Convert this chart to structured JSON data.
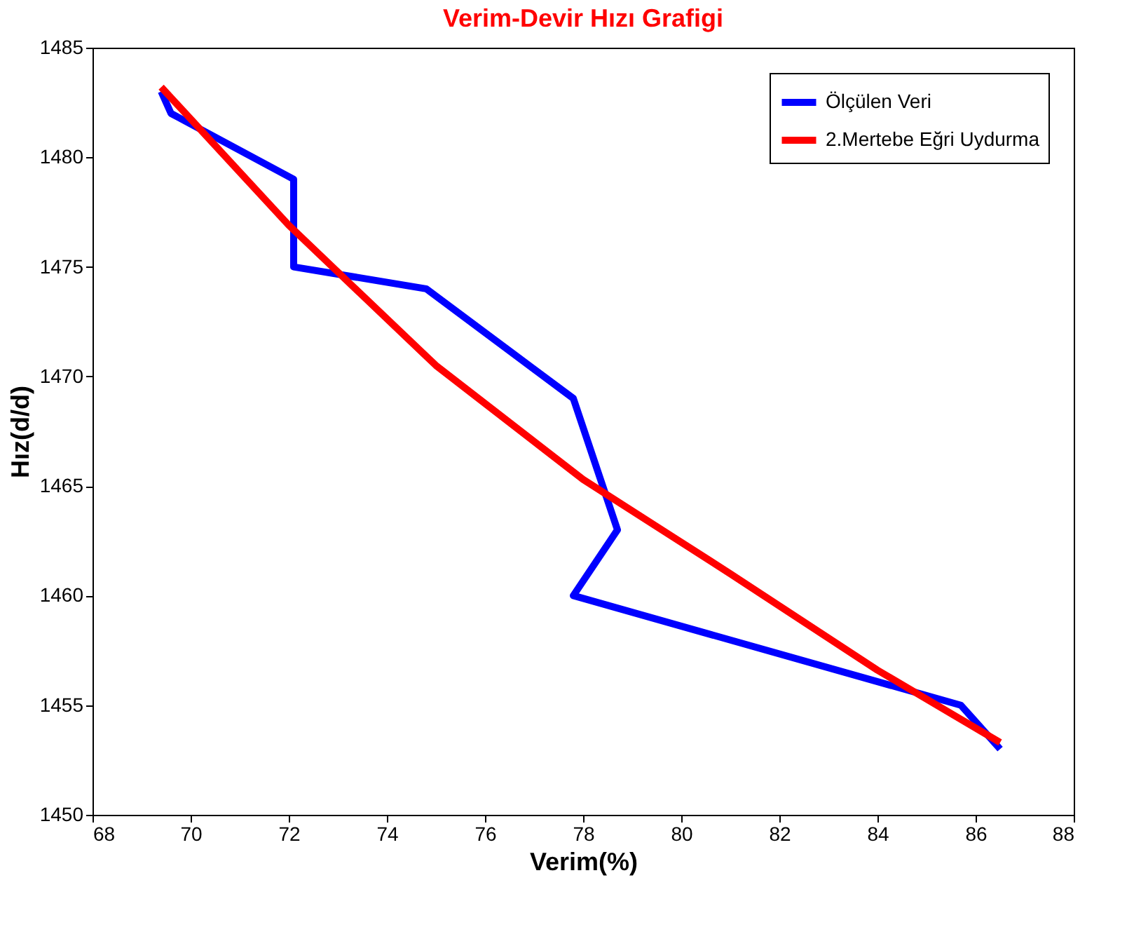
{
  "chart_data": {
    "type": "line",
    "title": "Verim-Devir Hızı Grafigi",
    "xlabel": "Verim(%)",
    "ylabel": "Hız(d/d)",
    "xlim": [
      68,
      88
    ],
    "xticks": [
      68,
      70,
      72,
      74,
      76,
      78,
      80,
      82,
      84,
      86,
      88
    ],
    "ylim": [
      1450,
      1485
    ],
    "yticks": [
      1450,
      1455,
      1460,
      1465,
      1470,
      1475,
      1480,
      1485
    ],
    "grid": false,
    "legend": "top right",
    "marker": "none",
    "line_style": "solid",
    "series": [
      {
        "name": "Ölçülen Veri",
        "color": "#0000ff",
        "x": [
          69.4,
          69.6,
          72.1,
          72.1,
          74.8,
          77.8,
          78.7,
          77.8,
          85.7,
          86.5
        ],
        "values": [
          1483,
          1482,
          1479,
          1475,
          1474,
          1469,
          1463,
          1460,
          1455,
          1453
        ]
      },
      {
        "name": "2.Mertebe Eğri Uydurma",
        "color": "#ff0000",
        "x": [
          69.4,
          72,
          75,
          78,
          81,
          84,
          86.5
        ],
        "values": [
          1483.2,
          1476.9,
          1470.5,
          1465.3,
          1461.0,
          1456.6,
          1453.3
        ]
      }
    ]
  }
}
